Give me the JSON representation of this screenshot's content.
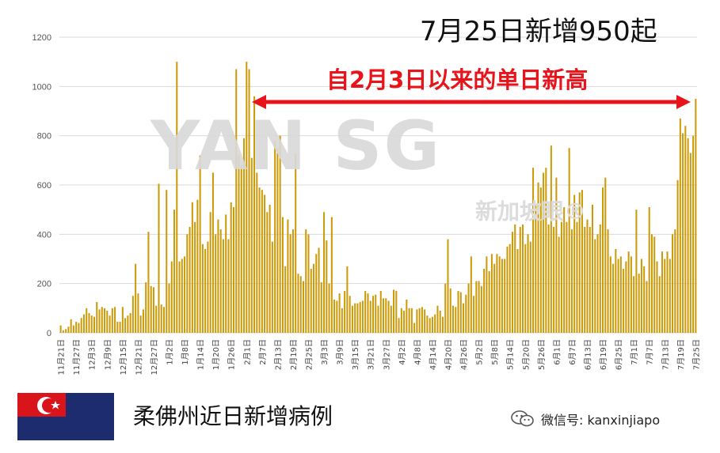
{
  "title": "7月25日新增950起",
  "headline": "自2月3日以来的单日新高",
  "watermark": {
    "main": "YAN  SG",
    "sub": "新加坡眼®"
  },
  "footer": {
    "title": "柔佛州近日新增病例",
    "wechat": "微信号: kanxinjiapo"
  },
  "colors": {
    "bar": "#cc9a06",
    "bar_edge": "#a87d00",
    "arrow": "#e8141c",
    "flag_red": "#d9141b",
    "flag_blue": "#1c2c6e"
  },
  "chart_data": {
    "type": "bar",
    "title": "7月25日新增950起",
    "annotation": "自2月3日以来的单日新高",
    "ylim": [
      0,
      1200
    ],
    "yticks": [
      0,
      200,
      400,
      600,
      800,
      1000,
      1200
    ],
    "start_date": "11月21日",
    "xtick_labels": [
      "11月21日",
      "11月27日",
      "12月3日",
      "12月9日",
      "12月15日",
      "12月21日",
      "12月27日",
      "1月2日",
      "1月8日",
      "1月14日",
      "1月20日",
      "1月26日",
      "2月1日",
      "2月7日",
      "2月13日",
      "2月19日",
      "2月25日",
      "3月3日",
      "3月9日",
      "3月15日",
      "3月21日",
      "3月27日",
      "4月2日",
      "4月8日",
      "4月14日",
      "4月20日",
      "4月26日",
      "5月2日",
      "5月8日",
      "5月14日",
      "5月20日",
      "5月26日",
      "6月1日",
      "6月7日",
      "6月13日",
      "6月19日",
      "6月25日",
      "7月1日",
      "7月7日",
      "7月13日",
      "7月19日",
      "7月25日"
    ],
    "values": [
      30,
      10,
      15,
      25,
      55,
      30,
      45,
      40,
      60,
      75,
      100,
      80,
      70,
      65,
      125,
      95,
      105,
      100,
      90,
      70,
      100,
      105,
      45,
      45,
      105,
      60,
      70,
      80,
      150,
      280,
      160,
      70,
      95,
      205,
      410,
      190,
      185,
      110,
      605,
      115,
      105,
      580,
      200,
      290,
      500,
      1100,
      290,
      300,
      310,
      400,
      430,
      530,
      450,
      540,
      720,
      360,
      340,
      370,
      490,
      650,
      400,
      460,
      420,
      380,
      480,
      380,
      530,
      510,
      1070,
      720,
      680,
      790,
      1100,
      1070,
      710,
      960,
      650,
      590,
      580,
      560,
      490,
      520,
      370,
      780,
      750,
      800,
      470,
      270,
      460,
      400,
      420,
      730,
      240,
      230,
      210,
      420,
      400,
      260,
      280,
      320,
      345,
      205,
      490,
      375,
      200,
      470,
      135,
      130,
      160,
      100,
      170,
      270,
      150,
      110,
      120,
      120,
      125,
      130,
      170,
      160,
      130,
      150,
      155,
      110,
      170,
      140,
      140,
      130,
      110,
      175,
      170,
      60,
      100,
      90,
      135,
      100,
      100,
      40,
      95,
      100,
      105,
      95,
      70,
      60,
      65,
      75,
      110,
      90,
      65,
      200,
      380,
      180,
      110,
      105,
      170,
      165,
      120,
      155,
      200,
      310,
      150,
      210,
      210,
      190,
      260,
      310,
      250,
      320,
      280,
      320,
      310,
      300,
      300,
      350,
      360,
      410,
      440,
      340,
      430,
      440,
      360,
      400,
      370,
      670,
      520,
      610,
      590,
      650,
      670,
      440,
      760,
      430,
      630,
      390,
      450,
      510,
      450,
      750,
      420,
      560,
      450,
      570,
      580,
      430,
      460,
      430,
      520,
      380,
      400,
      440,
      590,
      630,
      420,
      310,
      280,
      340,
      300,
      310,
      260,
      290,
      330,
      310,
      230,
      500,
      240,
      300,
      270,
      210,
      510,
      400,
      390,
      290,
      230,
      330,
      300,
      330,
      300,
      400,
      420,
      620,
      870,
      810,
      840,
      790,
      730,
      800,
      950
    ]
  }
}
